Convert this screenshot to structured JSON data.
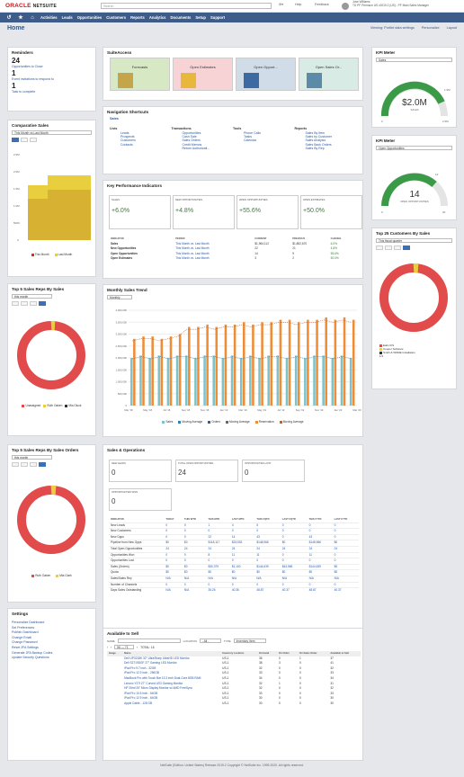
{
  "app": {
    "brand": "ORACLE",
    "brand2": "NETSUITE",
    "search_placeholder": "Search",
    "help": "Help",
    "feedback": "Feedback",
    "user_name": "Jose Williams",
    "user_role": "TD PF Premium US v2019.2 (US) - PF Main",
    "user_title": "Sales Manager"
  },
  "nav": [
    "Activities",
    "Leads",
    "Opportunities",
    "Customers",
    "Reports",
    "Analytics",
    "Documents",
    "Setup",
    "Support"
  ],
  "page": {
    "title": "Home",
    "viewing": "Viewing: Portlet data settings",
    "personalize": "Personalize",
    "layout": "Layout"
  },
  "reminders": {
    "title": "Reminders",
    "items": [
      {
        "n": "24",
        "label": "Opportunities to Close"
      },
      {
        "n": "1",
        "label": "Event invitations to respond to"
      },
      {
        "n": "1",
        "label": "Task to complete"
      }
    ]
  },
  "comparative": {
    "title": "Comparative Sales",
    "select": "This Month vs Last Month",
    "legend": [
      "This Month",
      "Last Month"
    ],
    "yticks": [
      "2.5M",
      "2.0M",
      "1.5M",
      "1.0M",
      "500K",
      "0"
    ]
  },
  "suiteaccess": {
    "title": "SuiteAccess",
    "tiles": [
      "Forecasts",
      "Open Estimates",
      "Open Opport...",
      "Open Sales Or..."
    ]
  },
  "nav_short": {
    "title": "Navigation Shortcuts",
    "tab": "Sales",
    "groups": [
      {
        "t": "Lists",
        "items": [
          "Leads",
          "Prospects",
          "Customers",
          "Contacts"
        ]
      },
      {
        "t": "Transactions",
        "items": [
          "Opportunities",
          "Cash Sale",
          "Sales Orders",
          "Credit Memos",
          "Return Authorizati..."
        ]
      },
      {
        "t": "Tools",
        "items": [
          "Phone Calls",
          "Tasks",
          "Calendar"
        ]
      },
      {
        "t": "Reports",
        "items": [
          "Sales By Item",
          "Sales by Customer",
          "Sales Analysis",
          "Sales Back Orders",
          "Sales By Rep"
        ]
      }
    ]
  },
  "kpi": {
    "title": "Key Performance Indicators",
    "boxes": [
      {
        "h": "SALES",
        "v": "+6.0%"
      },
      {
        "h": "NEW OPPORTUNITIES",
        "v": "+4.8%"
      },
      {
        "h": "OPEN OPPORTUNITIES",
        "v": "+55.6%"
      },
      {
        "h": "OPEN ESTIMATES",
        "v": "+50.0%"
      }
    ],
    "cols": [
      "INDICATOR",
      "PERIOD",
      "CURRENT",
      "PREVIOUS",
      "CHANGE"
    ],
    "rows": [
      [
        "Sales",
        "This Month vs. Last Month",
        "$1,964,112",
        "$1,852,670",
        "6.0%"
      ],
      [
        "New Opportunities",
        "This Month vs. Last Month",
        "22",
        "21",
        "4.8%"
      ],
      [
        "Open Opportunities",
        "This Month vs. Last Month",
        "14",
        "9",
        "55.6%"
      ],
      [
        "Open Estimates",
        "This Month vs. Last Month",
        "3",
        "2",
        "50.0%"
      ]
    ]
  },
  "meter1": {
    "title": "KPI Meter",
    "select": "Sales",
    "value": "$2.0M",
    "label": "SALES",
    "min": "0",
    "max": "2.5M",
    "mark": "1.9M"
  },
  "meter2": {
    "title": "KPI Meter",
    "select": "Open Opportunities",
    "value": "14",
    "label": "OPEN OPPORTUNITIES",
    "min": "0",
    "max": "20",
    "mark": "13"
  },
  "top25": {
    "title": "Top 25 Customers By Sales",
    "select": "This fiscal quarter",
    "legend": [
      "Ealin IFS",
      "Cooper Software",
      "Smith & WSME Installation"
    ],
    "page": "1/4"
  },
  "topreps": {
    "title": "Top 5 Sales Reps By Sales",
    "select": "this month",
    "legend": [
      "Unassigned",
      "Ruth Oaken",
      "Mia Gluck"
    ]
  },
  "trend": {
    "title": "Monthly Sales Trend",
    "select": "Monthly",
    "yticks": [
      "4,000,000",
      "3,500,000",
      "3,000,000",
      "2,500,000",
      "2,000,000",
      "1,500,000",
      "1,000,000",
      "500,000",
      "0"
    ],
    "xticks": [
      "Mar '18",
      "May '18",
      "Jul '18",
      "Sep '18",
      "Nov '18",
      "Jan '19",
      "Mar '19",
      "May '19",
      "Jul '19",
      "Sep '19",
      "Nov '19",
      "Jan '20",
      "Mar '20"
    ],
    "legend": [
      "Sales",
      "Moving Average",
      "Orders",
      "Moving Average",
      "Reservation",
      "Moving Average"
    ]
  },
  "chart_data": {
    "type": "bar",
    "series": [
      {
        "name": "Sales",
        "values": [
          2.0,
          2.1,
          2.0,
          2.1,
          2.0,
          2.1,
          2.1,
          2.0,
          2.1,
          2.1,
          2.0,
          2.1,
          2.0,
          2.1,
          2.0,
          2.1,
          2.1,
          2.0,
          2.1,
          2.0,
          2.1,
          2.1,
          2.0,
          2.1,
          2.0
        ]
      },
      {
        "name": "Orders",
        "values": [
          2.8,
          2.9,
          2.9,
          2.8,
          2.9,
          3.0,
          3.3,
          3.3,
          3.4,
          3.3,
          3.4,
          3.4,
          3.5,
          3.4,
          3.5,
          3.5,
          3.6,
          3.6,
          3.5,
          3.6,
          3.6,
          3.7,
          3.6,
          3.7,
          3.6
        ]
      }
    ],
    "ylim": [
      0,
      4.0
    ]
  },
  "sobox": {
    "title": "Sales & Operations",
    "boxes": [
      {
        "h": "NEW LEADS",
        "v": "0"
      },
      {
        "h": "TOTAL OPEN OPPORTUNITIES",
        "v": "24"
      },
      {
        "h": "OPPORTUNITIES LOST",
        "v": "0"
      },
      {
        "h": "OPPORTUNITIES WON",
        "v": "0"
      }
    ],
    "cols": [
      "INDICATOR",
      "TODAY",
      "THIS WTD",
      "THIS MTD",
      "LAST MTD",
      "THIS FQTD",
      "LAST FQTD",
      "THIS FYTD",
      "LAST FYTD"
    ],
    "rows": [
      [
        "New Leads",
        "0",
        "0",
        "1",
        "4",
        "5",
        "0",
        "0",
        "0"
      ],
      [
        "New Customers",
        "0",
        "0",
        "0",
        "0",
        "0",
        "0",
        "0",
        "0"
      ],
      [
        "New Opps",
        "0",
        "0",
        "22",
        "14",
        "43",
        "0",
        "43",
        "0"
      ],
      [
        "Pipeline from New Opps",
        "$0",
        "$0",
        "$118,117",
        "$23,533",
        "$148,966",
        "$0",
        "$148,966",
        "$0"
      ],
      [
        "Total Open Opportunities",
        "24",
        "24",
        "24",
        "24",
        "24",
        "24",
        "24",
        "24"
      ],
      [
        "Opportunities Won",
        "0",
        "0",
        "8",
        "11",
        "11",
        "0",
        "11",
        "0"
      ],
      [
        "Opportunities Lost",
        "0",
        "0",
        "0",
        "0",
        "0",
        "0",
        "0",
        "0"
      ],
      [
        "Sales (Orders)",
        "$0",
        "$0",
        "$30,379",
        "$1,100",
        "$144,639",
        "$43,565",
        "$144,639",
        "$0"
      ],
      [
        "Quota",
        "$0",
        "$0",
        "$0",
        "$0",
        "$0",
        "$0",
        "$0",
        "$0"
      ],
      [
        "Sales/Sales Rep",
        "N/A",
        "N/A",
        "N/A",
        "N/A",
        "N/A",
        "N/A",
        "N/A",
        "N/A"
      ],
      [
        "Number of Channels",
        "0",
        "0",
        "0",
        "0",
        "0",
        "0",
        "0",
        "0"
      ],
      [
        "Days Sales Outstanding",
        "N/A",
        "N/A",
        "35.26",
        "40.36",
        "48.87",
        "40.37",
        "48.87",
        "40.37"
      ]
    ]
  },
  "topreps2": {
    "title": "Top 5 Sales Reps By Sales Orders",
    "select": "this month",
    "legend": [
      "Ruth Oaken",
      "Mia Clark"
    ]
  },
  "settings": {
    "title": "Settings",
    "items": [
      "Personalize Dashboard",
      "Set Preferences",
      "Publish Dashboard",
      "Change Email",
      "Change Password",
      "Reset 2FA Settings",
      "Generate 2FA Backup Codes",
      "Update Security Questions"
    ]
  },
  "avail": {
    "title": "Available to Sell",
    "name_label": "NAME",
    "location_label": "LOCATION",
    "location_val": "- All -",
    "type_label": "TYPE",
    "type_val": "Inventory Item",
    "pager": "56 — 71",
    "total": "TOTAL: 16",
    "cols": [
      "Image",
      "Name",
      "Inventory Location",
      "On Hand",
      "On Order",
      "On Sales Order",
      "Available to Sell"
    ],
    "rows": [
      [
        "Dell UP3218K 32\" UltraSharp UltraHD LED Monitor",
        "US-1",
        "36",
        "0",
        "1",
        "37"
      ],
      [
        "Dell S2719DGF 27\" Gaming LED Monitor",
        "US-1",
        "38",
        "3",
        "0",
        "41"
      ],
      [
        "iPad Pro 9.7 inch - 32GB",
        "US-1",
        "32",
        "0",
        "0",
        "32"
      ],
      [
        "iPad Pro 12.9 inch - 256GB",
        "US-1",
        "33",
        "0",
        "0",
        "33"
      ],
      [
        "MacBook Pro with Touch Bar 13.3 inch Dual-Core 8GB RAM",
        "US-1",
        "34",
        "0",
        "0",
        "34"
      ],
      [
        "Lenovo Y27f 27\" Curved LED Gaming Monitor",
        "US-1",
        "32",
        "1",
        "0",
        "31"
      ],
      [
        "HP 25mf 25\" Micro Display Monitor w/ AMD FreeSync",
        "US-1",
        "32",
        "0",
        "0",
        "32"
      ],
      [
        "iPad Pro 10.5 inch - 64GB",
        "US-1",
        "33",
        "0",
        "0",
        "33"
      ],
      [
        "iPad Pro 12.9 inch - 64GB",
        "US-1",
        "30",
        "0",
        "0",
        "30"
      ],
      [
        "Apple Cable - 128 GB",
        "US-1",
        "30",
        "0",
        "0",
        "30"
      ]
    ]
  },
  "footer": "NetSuite (Edition: United States) Release 2019.2 Copyright © NetSuite Inc. 1999-2020. All rights reserved."
}
